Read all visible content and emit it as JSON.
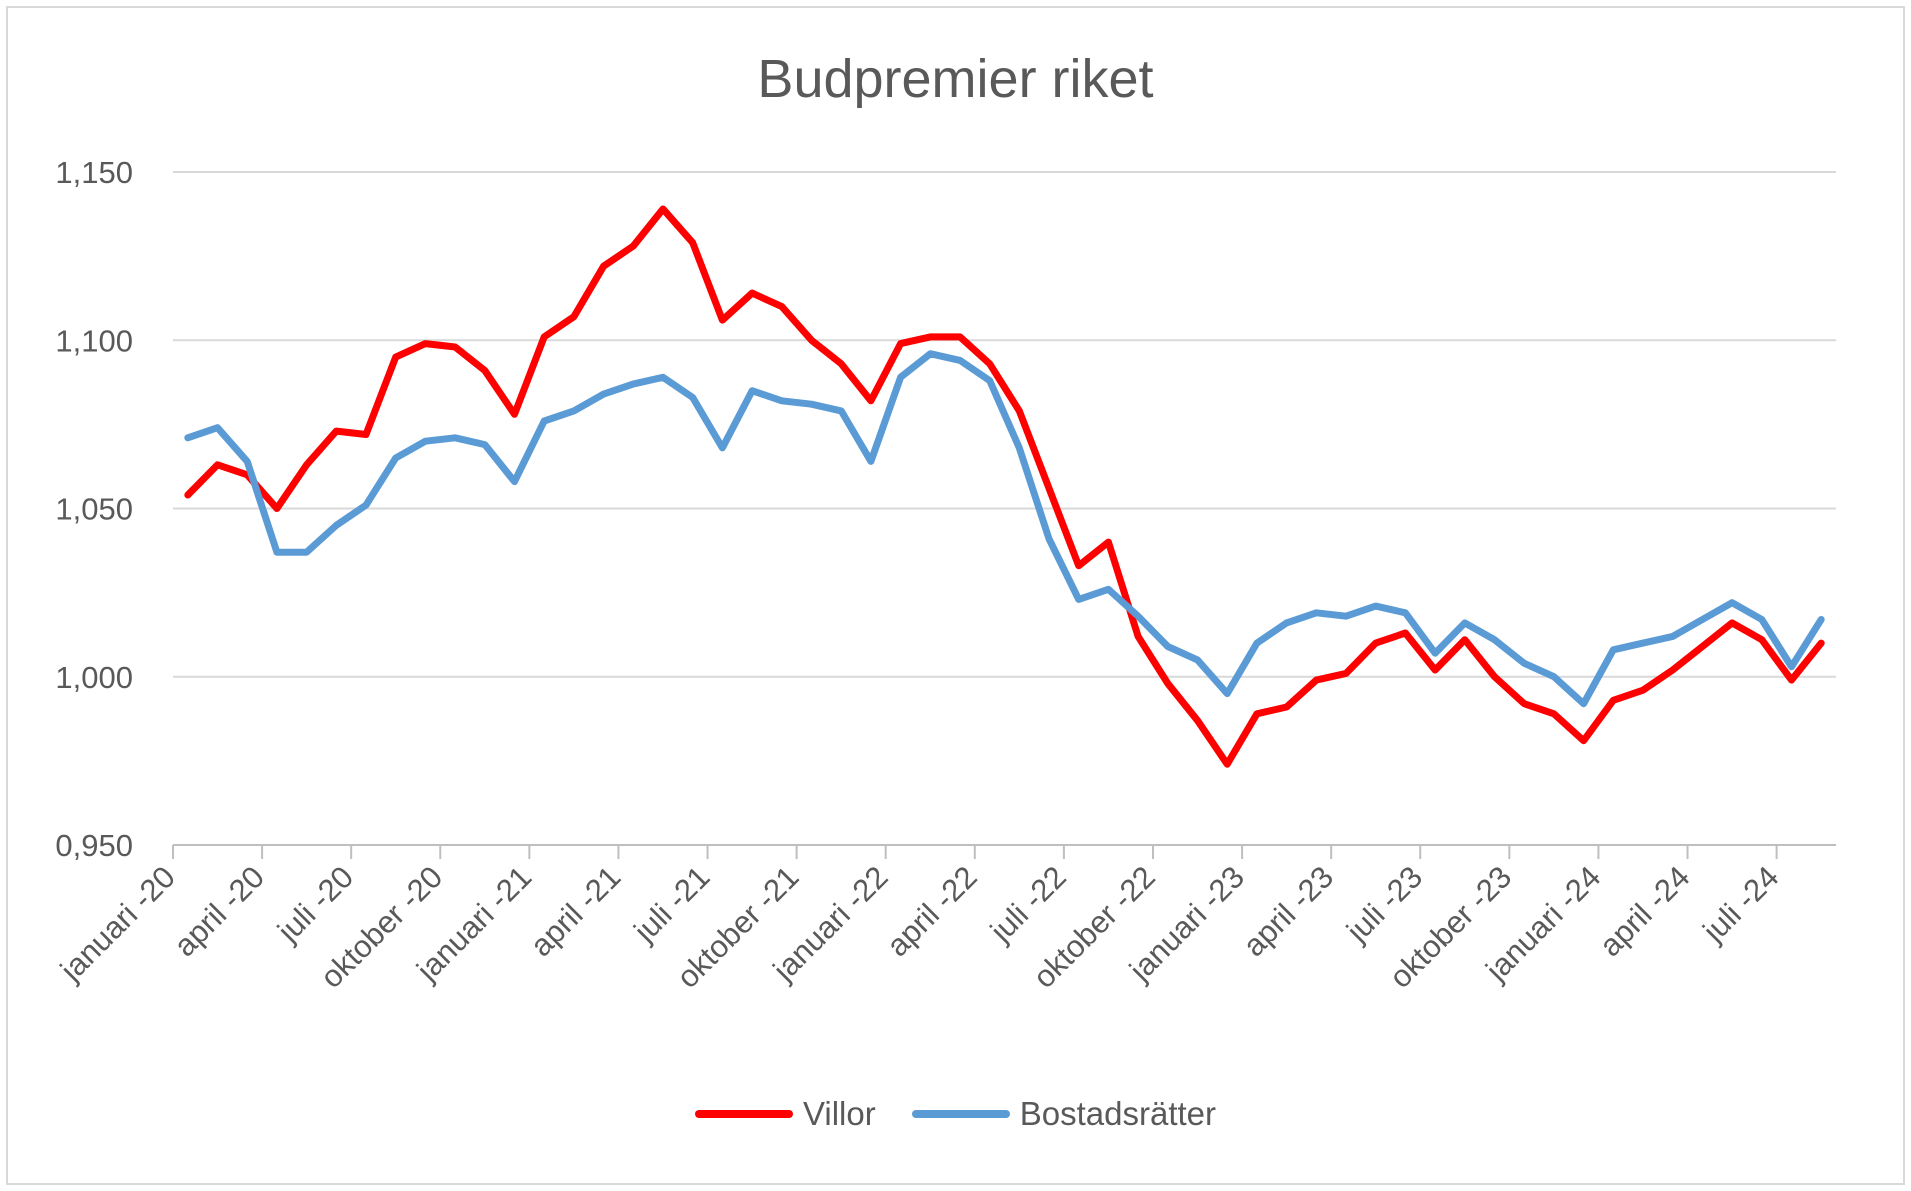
{
  "chart_data": {
    "type": "line",
    "title": "Budpremier riket",
    "ylim": [
      0.95,
      1.15
    ],
    "yticks": [
      1.15,
      1.1,
      1.05,
      1.0,
      0.95
    ],
    "ytick_labels": [
      "1,150",
      "1,100",
      "1,050",
      "1,000",
      "0,950"
    ],
    "x_tick_labels": [
      "januari -20",
      "april -20",
      "juli -20",
      "oktober -20",
      "januari -21",
      "april -21",
      "juli -21",
      "oktober -21",
      "januari -22",
      "april -22",
      "juli -22",
      "oktober -22",
      "januari -23",
      "april -23",
      "juli -23",
      "oktober -23",
      "januari -24",
      "april -24",
      "juli -24"
    ],
    "x": [
      "2020-01",
      "2020-02",
      "2020-03",
      "2020-04",
      "2020-05",
      "2020-06",
      "2020-07",
      "2020-08",
      "2020-09",
      "2020-10",
      "2020-11",
      "2020-12",
      "2021-01",
      "2021-02",
      "2021-03",
      "2021-04",
      "2021-05",
      "2021-06",
      "2021-07",
      "2021-08",
      "2021-09",
      "2021-10",
      "2021-11",
      "2021-12",
      "2022-01",
      "2022-02",
      "2022-03",
      "2022-04",
      "2022-05",
      "2022-06",
      "2022-07",
      "2022-08",
      "2022-09",
      "2022-10",
      "2022-11",
      "2022-12",
      "2023-01",
      "2023-02",
      "2023-03",
      "2023-04",
      "2023-05",
      "2023-06",
      "2023-07",
      "2023-08",
      "2023-09",
      "2023-10",
      "2023-11",
      "2023-12",
      "2024-01",
      "2024-02",
      "2024-03",
      "2024-04",
      "2024-05",
      "2024-06",
      "2024-07",
      "2024-08"
    ],
    "series": [
      {
        "name": "Villor",
        "color": "#ff0000",
        "values": [
          1.054,
          1.063,
          1.06,
          1.05,
          1.063,
          1.073,
          1.072,
          1.095,
          1.099,
          1.098,
          1.091,
          1.078,
          1.101,
          1.107,
          1.122,
          1.128,
          1.139,
          1.129,
          1.106,
          1.114,
          1.11,
          1.1,
          1.093,
          1.082,
          1.099,
          1.101,
          1.101,
          1.093,
          1.079,
          1.056,
          1.033,
          1.04,
          1.012,
          0.998,
          0.987,
          0.974,
          0.989,
          0.991,
          0.999,
          1.001,
          1.01,
          1.013,
          1.002,
          1.011,
          1.0,
          0.992,
          0.989,
          0.981,
          0.993,
          0.996,
          1.002,
          1.009,
          1.016,
          1.011,
          0.999,
          1.01
        ]
      },
      {
        "name": "Bostadsrätter",
        "color": "#5b9bd5",
        "values": [
          1.071,
          1.074,
          1.064,
          1.037,
          1.037,
          1.045,
          1.051,
          1.065,
          1.07,
          1.071,
          1.069,
          1.058,
          1.076,
          1.079,
          1.084,
          1.087,
          1.089,
          1.083,
          1.068,
          1.085,
          1.082,
          1.081,
          1.079,
          1.064,
          1.089,
          1.096,
          1.094,
          1.088,
          1.068,
          1.041,
          1.023,
          1.026,
          1.018,
          1.009,
          1.005,
          0.995,
          1.01,
          1.016,
          1.019,
          1.018,
          1.021,
          1.019,
          1.007,
          1.016,
          1.011,
          1.004,
          1.0,
          0.992,
          1.008,
          1.01,
          1.012,
          1.017,
          1.022,
          1.017,
          1.003,
          1.017
        ]
      }
    ],
    "grid": true,
    "legend_position": "bottom"
  }
}
